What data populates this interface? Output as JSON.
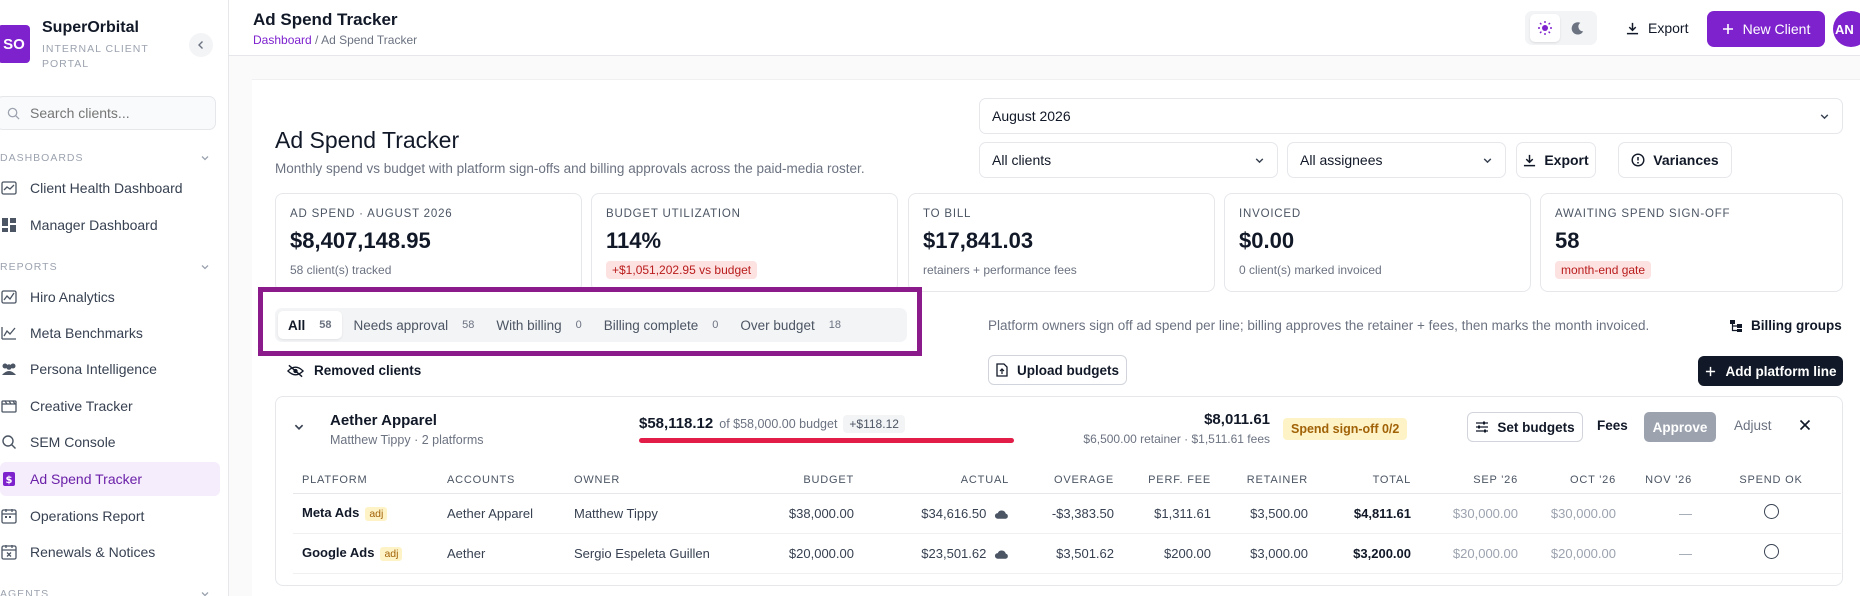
{
  "sidebar": {
    "logo": "SO",
    "brand": "SuperOrbital",
    "brand_sub": "INTERNAL CLIENT PORTAL",
    "search_placeholder": "Search clients...",
    "sections": [
      {
        "label": "DASHBOARDS",
        "items": [
          {
            "label": "Client Health Dashboard",
            "icon": "chart-line-icon"
          },
          {
            "label": "Manager Dashboard",
            "icon": "dashboard-grid-icon"
          }
        ]
      },
      {
        "label": "REPORTS",
        "items": [
          {
            "label": "Hiro Analytics",
            "icon": "analytics-icon"
          },
          {
            "label": "Meta Benchmarks",
            "icon": "benchmark-icon"
          },
          {
            "label": "Persona Intelligence",
            "icon": "users-icon"
          },
          {
            "label": "Creative Tracker",
            "icon": "film-icon"
          },
          {
            "label": "SEM Console",
            "icon": "search-console-icon"
          },
          {
            "label": "Ad Spend Tracker",
            "icon": "dollar-doc-icon",
            "active": true
          },
          {
            "label": "Operations Report",
            "icon": "calendar-icon"
          },
          {
            "label": "Renewals & Notices",
            "icon": "calendar-x-icon"
          }
        ]
      },
      {
        "label": "AGENTS",
        "items": []
      }
    ]
  },
  "topbar": {
    "title": "Ad Spend Tracker",
    "breadcrumb_link": "Dashboard",
    "breadcrumb_sep": " / ",
    "breadcrumb_current": "Ad Spend Tracker",
    "export_label": "Export",
    "new_client_label": "New Client",
    "avatar": "AN"
  },
  "page": {
    "title": "Ad Spend Tracker",
    "subtitle": "Monthly spend vs budget with platform sign-offs and billing approvals across the paid-media roster.",
    "month_select": "August 2026",
    "client_select": "All clients",
    "assignee_select": "All assignees",
    "export_label": "Export",
    "variances_label": "Variances"
  },
  "kpis": [
    {
      "label": "AD SPEND · AUGUST 2026",
      "value": "$8,407,148.95",
      "sub": "58 client(s) tracked"
    },
    {
      "label": "BUDGET UTILIZATION",
      "value": "114%",
      "badge": "+$1,051,202.95 vs budget"
    },
    {
      "label": "TO BILL",
      "value": "$17,841.03",
      "sub": "retainers + performance fees"
    },
    {
      "label": "INVOICED",
      "value": "$0.00",
      "sub": "0 client(s) marked invoiced"
    },
    {
      "label": "AWAITING SPEND SIGN-OFF",
      "value": "58",
      "badge": "month-end gate"
    }
  ],
  "tabs": [
    {
      "label": "All",
      "count": "58",
      "active": true
    },
    {
      "label": "Needs approval",
      "count": "58"
    },
    {
      "label": "With billing",
      "count": "0"
    },
    {
      "label": "Billing complete",
      "count": "0"
    },
    {
      "label": "Over budget",
      "count": "18"
    }
  ],
  "info_text": "Platform owners sign off ad spend per line; billing approves the retainer + fees, then marks the month invoiced.",
  "billing_groups_label": "Billing groups",
  "removed_clients_label": "Removed clients",
  "upload_budgets_label": "Upload budgets",
  "add_platform_line_label": "Add platform line",
  "client": {
    "name": "Aether Apparel",
    "meta": "Matthew Tippy · 2 platforms",
    "spent": "$58,118.12",
    "of_budget": "of $58,000.00 budget",
    "overage": "+$118.12",
    "utilization": 1.0,
    "total": "$8,011.61",
    "total_sub": "$6,500.00 retainer · $1,511.61 fees",
    "status": "Spend sign-off 0/2",
    "set_budgets_label": "Set budgets",
    "fees_label": "Fees",
    "approve_label": "Approve",
    "adjust_label": "Adjust",
    "columns": [
      "PLATFORM",
      "ACCOUNTS",
      "OWNER",
      "BUDGET",
      "ACTUAL",
      "OVERAGE",
      "PERF. FEE",
      "RETAINER",
      "TOTAL",
      "SEP '26",
      "OCT '26",
      "NOV '26",
      "SPEND OK"
    ],
    "rows": [
      {
        "platform": "Meta Ads",
        "adj": "adj",
        "accounts": "Aether Apparel",
        "owner": "Matthew Tippy",
        "budget": "$38,000.00",
        "actual": "$34,616.50",
        "overage": "-$3,383.50",
        "perf_fee": "$1,311.61",
        "retainer": "$3,500.00",
        "total": "$4,811.61",
        "sep": "$30,000.00",
        "oct": "$30,000.00",
        "nov": "—"
      },
      {
        "platform": "Google Ads",
        "adj": "adj",
        "accounts": "Aether",
        "owner": "Sergio Espeleta Guillen",
        "budget": "$20,000.00",
        "actual": "$23,501.62",
        "overage": "$3,501.62",
        "perf_fee": "$200.00",
        "retainer": "$3,000.00",
        "total": "$3,200.00",
        "sep": "$20,000.00",
        "oct": "$20,000.00",
        "nov": "—"
      }
    ]
  },
  "colors": {
    "accent": "#7e22ce",
    "danger": "#e11d48",
    "highlight": "#8b1a8b"
  }
}
